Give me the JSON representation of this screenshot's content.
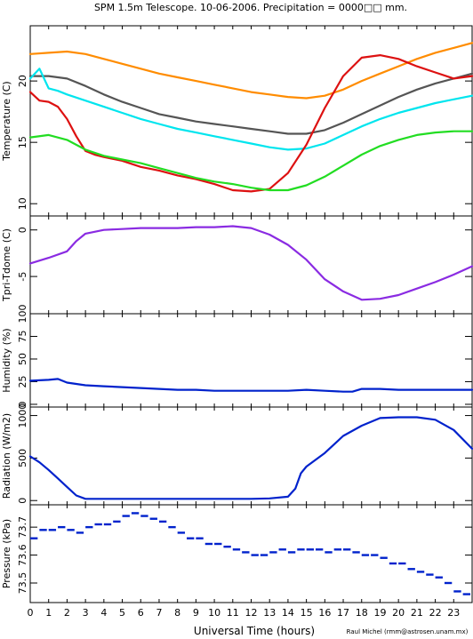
{
  "title": "SPM 1.5m Telescope. 10-06-2006. Precipitation = 0000□□ mm.",
  "xlabel": "Universal Time (hours)",
  "credit": "Raul Michel (rmm@astrosen.unam.mx)",
  "x_ticks": [
    "0",
    "1",
    "2",
    "3",
    "4",
    "5",
    "6",
    "7",
    "8",
    "9",
    "10",
    "11",
    "12",
    "13",
    "14",
    "15",
    "16",
    "17",
    "18",
    "19",
    "20",
    "21",
    "22",
    "23"
  ],
  "panels": {
    "temperature": {
      "ylabel": "Temperature (C)",
      "ylim": [
        9,
        24.5
      ],
      "ticks": [
        "10",
        "15",
        "20"
      ],
      "tick_values": [
        10,
        15,
        20
      ]
    },
    "tdiff": {
      "ylabel": "Tpri-Tdome (C)",
      "ylim": [
        -9,
        1.5
      ],
      "ticks": [
        "-5",
        "0"
      ],
      "tick_values": [
        -5,
        0
      ]
    },
    "humidity": {
      "ylabel": "Humidity (%)",
      "ylim": [
        -3,
        100
      ],
      "ticks": [
        "0",
        "25",
        "50",
        "75",
        "100"
      ],
      "tick_values": [
        0,
        25,
        50,
        75,
        100
      ]
    },
    "radiation": {
      "ylabel": "Radiation (W/m2)",
      "ylim": [
        -50,
        1100
      ],
      "ticks": [
        "0",
        "500",
        "1000"
      ],
      "tick_values": [
        0,
        500,
        1000
      ]
    },
    "pressure": {
      "ylabel": "Pressure (kPa)",
      "ylim": [
        73.43,
        73.78
      ],
      "ticks": [
        "73.5",
        "73.6",
        "73.7"
      ],
      "tick_values": [
        73.5,
        73.6,
        73.7
      ]
    }
  },
  "chart_data": {
    "type": "line",
    "x_range": [
      0,
      24
    ],
    "x_unit": "hours",
    "series": [
      {
        "panel": "temperature",
        "color": "#ff8c00",
        "x": [
          0,
          1,
          2,
          3,
          4,
          5,
          6,
          7,
          8,
          9,
          10,
          11,
          12,
          13,
          14,
          15,
          16,
          17,
          18,
          19,
          20,
          21,
          22,
          23,
          24
        ],
        "y": [
          22.2,
          22.3,
          22.4,
          22.2,
          21.8,
          21.4,
          21.0,
          20.6,
          20.3,
          20.0,
          19.7,
          19.4,
          19.1,
          18.9,
          18.7,
          18.6,
          18.8,
          19.3,
          20.0,
          20.6,
          21.2,
          21.8,
          22.3,
          22.7,
          23.1
        ]
      },
      {
        "panel": "temperature",
        "color": "#555555",
        "x": [
          0,
          1,
          2,
          3,
          4,
          5,
          6,
          7,
          8,
          9,
          10,
          11,
          12,
          13,
          14,
          15,
          16,
          17,
          18,
          19,
          20,
          21,
          22,
          23,
          24
        ],
        "y": [
          20.4,
          20.4,
          20.2,
          19.6,
          18.9,
          18.3,
          17.8,
          17.3,
          17.0,
          16.7,
          16.5,
          16.3,
          16.1,
          15.9,
          15.7,
          15.7,
          16.0,
          16.6,
          17.3,
          18.0,
          18.7,
          19.3,
          19.8,
          20.2,
          20.6
        ]
      },
      {
        "panel": "temperature",
        "color": "#00e5ee",
        "x": [
          0,
          0.5,
          1,
          1.5,
          2,
          3,
          4,
          5,
          6,
          7,
          8,
          9,
          10,
          11,
          12,
          13,
          14,
          15,
          16,
          17,
          18,
          19,
          20,
          21,
          22,
          23,
          24
        ],
        "y": [
          20.2,
          21.0,
          19.4,
          19.2,
          18.9,
          18.4,
          17.9,
          17.4,
          16.9,
          16.5,
          16.1,
          15.8,
          15.5,
          15.2,
          14.9,
          14.6,
          14.4,
          14.5,
          14.9,
          15.6,
          16.3,
          16.9,
          17.4,
          17.8,
          18.2,
          18.5,
          18.8
        ]
      },
      {
        "panel": "temperature",
        "color": "#dd1111",
        "x": [
          0,
          0.5,
          1,
          1.5,
          2,
          2.5,
          3,
          3.5,
          4,
          5,
          6,
          7,
          8,
          9,
          10,
          11,
          12,
          13,
          14,
          15,
          16,
          17,
          18,
          19,
          20,
          21,
          22,
          23,
          24
        ],
        "y": [
          19.1,
          18.4,
          18.3,
          17.9,
          16.9,
          15.5,
          14.3,
          14.0,
          13.8,
          13.5,
          13.0,
          12.7,
          12.3,
          12.0,
          11.6,
          11.1,
          11.0,
          11.2,
          12.5,
          14.8,
          17.8,
          20.4,
          21.9,
          22.1,
          21.8,
          21.2,
          20.7,
          20.2,
          20.4
        ]
      },
      {
        "panel": "temperature",
        "color": "#22dd22",
        "x": [
          0,
          1,
          2,
          3,
          4,
          5,
          6,
          7,
          8,
          9,
          10,
          11,
          12,
          13,
          14,
          15,
          16,
          17,
          18,
          19,
          20,
          21,
          22,
          23,
          24
        ],
        "y": [
          15.4,
          15.6,
          15.2,
          14.4,
          13.9,
          13.6,
          13.3,
          12.9,
          12.5,
          12.1,
          11.8,
          11.6,
          11.3,
          11.1,
          11.1,
          11.5,
          12.2,
          13.1,
          14.0,
          14.7,
          15.2,
          15.6,
          15.8,
          15.9,
          15.9
        ]
      },
      {
        "panel": "tdiff",
        "color": "#8a2be2",
        "x": [
          0,
          1,
          2,
          2.5,
          3,
          4,
          5,
          6,
          7,
          8,
          9,
          10,
          11,
          12,
          13,
          14,
          15,
          16,
          17,
          18,
          19,
          20,
          21,
          22,
          23,
          24
        ],
        "y": [
          -3.6,
          -3.0,
          -2.3,
          -1.2,
          -0.4,
          0.0,
          0.1,
          0.2,
          0.2,
          0.2,
          0.3,
          0.3,
          0.4,
          0.2,
          -0.5,
          -1.6,
          -3.2,
          -5.3,
          -6.6,
          -7.5,
          -7.4,
          -7.0,
          -6.3,
          -5.6,
          -4.8,
          -3.9
        ]
      },
      {
        "panel": "humidity",
        "color": "#0022cc",
        "x": [
          0,
          1,
          1.5,
          2,
          3,
          4,
          5,
          6,
          7,
          8,
          9,
          10,
          11,
          12,
          13,
          14,
          15,
          16,
          17,
          17.5,
          18,
          19,
          20,
          21,
          22,
          23,
          24
        ],
        "y": [
          26,
          27,
          28,
          24,
          21,
          20,
          19,
          18,
          17,
          16,
          16,
          15,
          15,
          15,
          15,
          15,
          16,
          15,
          14,
          14,
          17,
          17,
          16,
          16,
          16,
          16,
          16
        ]
      },
      {
        "panel": "radiation",
        "color": "#0022cc",
        "x": [
          0,
          0.5,
          1,
          1.5,
          2,
          2.5,
          3,
          4,
          5,
          6,
          7,
          8,
          9,
          10,
          11,
          12,
          13,
          14,
          14.4,
          14.7,
          15,
          16,
          17,
          18,
          19,
          20,
          21,
          22,
          23,
          24
        ],
        "y": [
          520,
          450,
          360,
          260,
          160,
          60,
          20,
          20,
          20,
          20,
          20,
          20,
          20,
          20,
          20,
          20,
          25,
          45,
          140,
          320,
          400,
          560,
          760,
          880,
          970,
          980,
          980,
          950,
          830,
          610
        ]
      },
      {
        "panel": "pressure",
        "color": "#0022cc",
        "x": [
          0,
          0.5,
          1,
          1.5,
          2,
          2.5,
          3,
          3.5,
          4,
          4.5,
          5,
          5.5,
          6,
          6.5,
          7,
          7.5,
          8,
          8.5,
          9,
          9.5,
          10,
          10.5,
          11,
          11.5,
          12,
          12.5,
          13,
          13.5,
          14,
          14.5,
          15,
          15.5,
          16,
          16.5,
          17,
          17.5,
          18,
          18.5,
          19,
          19.5,
          20,
          20.5,
          21,
          21.5,
          22,
          22.5,
          23,
          23.5
        ],
        "y": [
          73.66,
          73.69,
          73.69,
          73.7,
          73.69,
          73.68,
          73.7,
          73.71,
          73.71,
          73.72,
          73.74,
          73.75,
          73.74,
          73.73,
          73.72,
          73.7,
          73.68,
          73.66,
          73.66,
          73.64,
          73.64,
          73.63,
          73.62,
          73.61,
          73.6,
          73.6,
          73.61,
          73.62,
          73.61,
          73.62,
          73.62,
          73.62,
          73.61,
          73.62,
          73.62,
          73.61,
          73.6,
          73.6,
          73.59,
          73.57,
          73.57,
          73.55,
          73.54,
          73.53,
          73.52,
          73.5,
          73.47,
          73.46
        ]
      }
    ]
  }
}
